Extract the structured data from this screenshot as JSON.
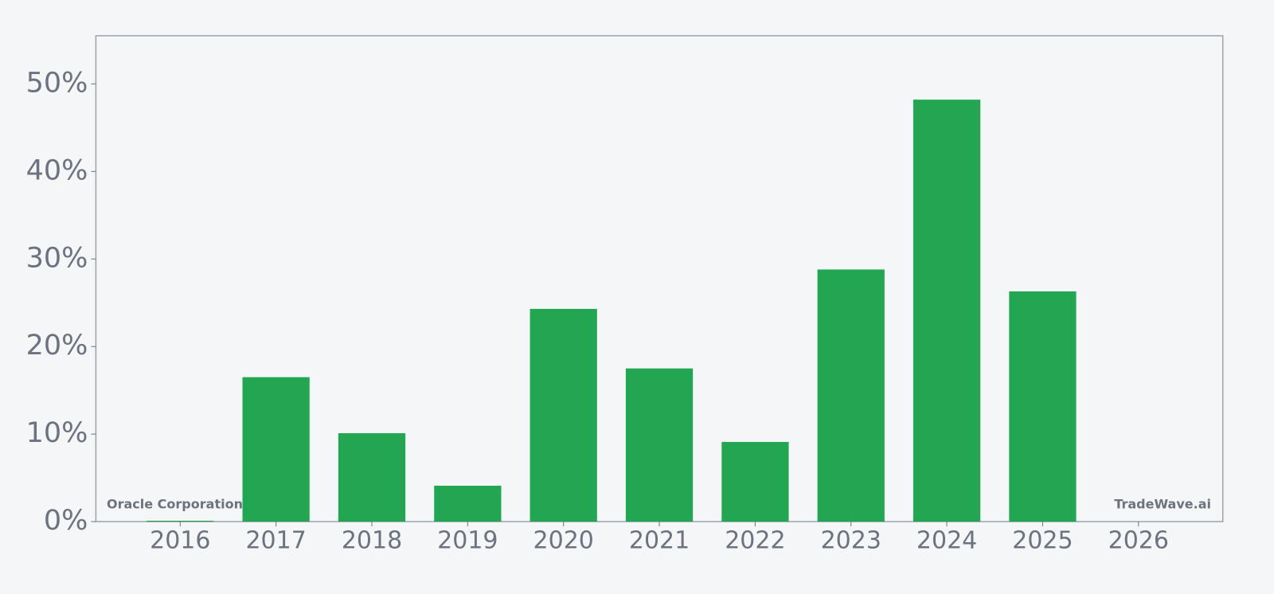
{
  "chart_data": {
    "type": "bar",
    "x": [
      2016,
      2017,
      2018,
      2019,
      2020,
      2021,
      2022,
      2023,
      2024,
      2025,
      2026
    ],
    "values": [
      0.1,
      16.5,
      10.1,
      4.1,
      24.3,
      17.5,
      9.1,
      28.8,
      48.2,
      26.3,
      null
    ],
    "color": "#22a652",
    "xlim": [
      2015.12,
      2026.88
    ],
    "xticks": [
      2016,
      2017,
      2018,
      2019,
      2020,
      2021,
      2022,
      2023,
      2024,
      2025,
      2026
    ],
    "ylim": [
      0,
      55.5
    ],
    "yticks": [
      {
        "value": 0,
        "label": "0%"
      },
      {
        "value": 10,
        "label": "10%"
      },
      {
        "value": 20,
        "label": "20%"
      },
      {
        "value": 30,
        "label": "30%"
      },
      {
        "value": 40,
        "label": "40%"
      },
      {
        "value": 50,
        "label": "50%"
      }
    ],
    "annotations": [
      "Oracle Corporation",
      "TradeWave.ai"
    ],
    "grid": false
  }
}
